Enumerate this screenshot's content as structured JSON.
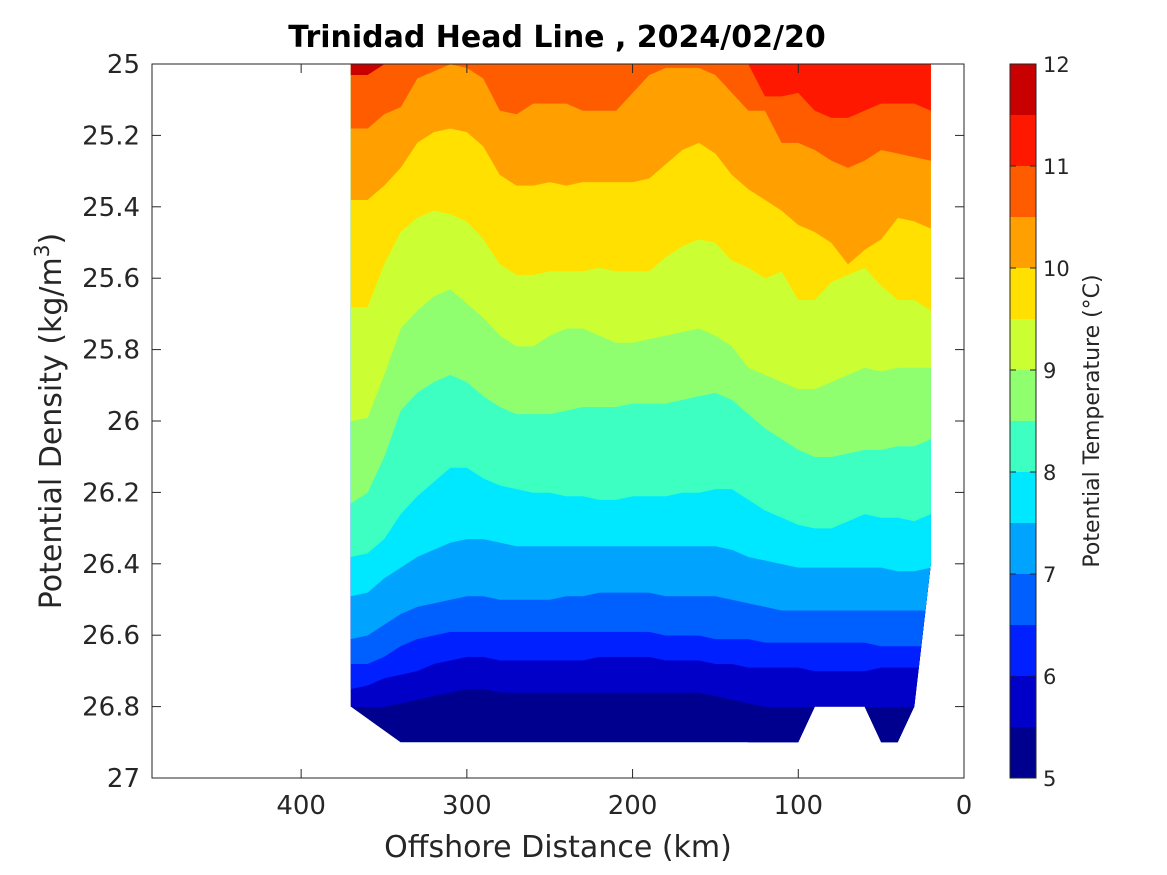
{
  "chart_data": {
    "type": "contour",
    "title": "Trinidad Head Line , 2024/02/20",
    "xlabel": "Offshore Distance (km)",
    "ylabel": "Potential Density (kg/m",
    "ylabel_sup": "3",
    "ylabel_close": ")",
    "colorbar_label": "Potential Temperature (°C)",
    "xlim": [
      490,
      0
    ],
    "ylim": [
      25,
      27
    ],
    "y_reversed": true,
    "x_ticks": [
      400,
      300,
      200,
      100,
      0
    ],
    "y_ticks": [
      "25",
      "25.2",
      "25.4",
      "25.6",
      "25.8",
      "26",
      "26.2",
      "26.4",
      "26.6",
      "26.8",
      "27"
    ],
    "colorbar_ticks": [
      5,
      6,
      7,
      8,
      9,
      10,
      11,
      12
    ],
    "colorbar_range": [
      5,
      12
    ],
    "levels": [
      5,
      5.5,
      6,
      6.5,
      7,
      7.5,
      8,
      8.5,
      9,
      9.5,
      10,
      10.5,
      11,
      11.5,
      12
    ],
    "level_colors": [
      "#00008f",
      "#0000c8",
      "#0020ff",
      "#0060ff",
      "#00a4ff",
      "#00e8ff",
      "#3dffc2",
      "#8fff70",
      "#ccff33",
      "#ffe000",
      "#ffa000",
      "#ff5c00",
      "#ff1800",
      "#c80000"
    ],
    "data_extent": {
      "x": [
        20,
        370
      ],
      "upper_x": [
        370,
        340,
        330,
        320,
        310,
        300,
        290,
        280,
        270,
        260,
        250,
        240,
        230,
        220,
        210,
        200,
        190,
        180,
        170,
        160,
        150,
        140,
        130,
        120,
        110,
        100,
        90,
        80,
        70,
        60,
        50,
        40,
        30,
        20
      ],
      "bottom_density": [
        26.8,
        26.9,
        26.9,
        26.9,
        26.9,
        26.9,
        26.9,
        26.9,
        26.9,
        26.9,
        26.9,
        26.9,
        26.9,
        26.9,
        26.9,
        26.9,
        26.9,
        26.9,
        26.9,
        26.9,
        26.9,
        26.9,
        26.9,
        26.9,
        26.9,
        26.9,
        26.8,
        26.8,
        26.8,
        26.8,
        26.9,
        26.9,
        26.8,
        26.4
      ]
    },
    "isotherms": [
      {
        "level": 11.5,
        "x": [
          370,
          360,
          350,
          340,
          330,
          320,
          310,
          300,
          290,
          280,
          270,
          260,
          250,
          240,
          230,
          220,
          210,
          200,
          190,
          180,
          170,
          160,
          150,
          140,
          130,
          120,
          110,
          100,
          90,
          80,
          70,
          60,
          50,
          40,
          30,
          20
        ],
        "density": [
          25.03,
          25.03,
          25.0,
          25.0,
          25.0,
          25.0,
          25.0,
          25.0,
          25.0,
          25.0,
          25.0,
          25.0,
          25.0,
          25.0,
          25.0,
          25.0,
          25.0,
          25.0,
          25.0,
          25.0,
          25.0,
          25.0,
          25.0,
          25.0,
          25.0,
          25.0,
          25.0,
          25.0,
          25.0,
          25.0,
          25.0,
          25.0,
          25.0,
          25.0,
          25.0,
          25.0
        ]
      },
      {
        "level": 11,
        "x": [
          370,
          360,
          350,
          340,
          330,
          320,
          310,
          300,
          290,
          280,
          270,
          260,
          250,
          240,
          230,
          220,
          210,
          200,
          190,
          180,
          170,
          160,
          150,
          140,
          130,
          120,
          110,
          100,
          90,
          80,
          70,
          60,
          50,
          40,
          30,
          20
        ],
        "density": [
          25.03,
          25.03,
          25.0,
          25.0,
          25.0,
          25.0,
          25.0,
          25.0,
          25.0,
          25.0,
          25.0,
          25.0,
          25.0,
          25.0,
          25.0,
          25.0,
          25.0,
          25.0,
          25.0,
          25.0,
          25.0,
          25.0,
          25.0,
          25.0,
          25.0,
          25.09,
          25.09,
          25.08,
          25.13,
          25.15,
          25.15,
          25.13,
          25.11,
          25.11,
          25.11,
          25.13
        ]
      },
      {
        "level": 10.5,
        "x": [
          370,
          360,
          350,
          340,
          330,
          320,
          310,
          300,
          290,
          280,
          270,
          260,
          250,
          240,
          230,
          220,
          210,
          200,
          190,
          180,
          170,
          160,
          150,
          140,
          130,
          120,
          110,
          100,
          90,
          80,
          70,
          60,
          50,
          40,
          30,
          20
        ],
        "density": [
          25.18,
          25.18,
          25.14,
          25.12,
          25.04,
          25.02,
          25.0,
          25.01,
          25.04,
          25.13,
          25.14,
          25.11,
          25.11,
          25.11,
          25.13,
          25.13,
          25.13,
          25.08,
          25.03,
          25.01,
          25.01,
          25.01,
          25.03,
          25.08,
          25.13,
          25.13,
          25.22,
          25.22,
          25.24,
          25.27,
          25.29,
          25.27,
          25.24,
          25.25,
          25.26,
          25.27
        ]
      },
      {
        "level": 10,
        "x": [
          370,
          360,
          350,
          340,
          330,
          320,
          310,
          300,
          290,
          280,
          270,
          260,
          250,
          240,
          230,
          220,
          210,
          200,
          190,
          180,
          170,
          160,
          150,
          140,
          130,
          120,
          110,
          100,
          90,
          80,
          70,
          60,
          50,
          40,
          30,
          20
        ],
        "density": [
          25.38,
          25.38,
          25.34,
          25.29,
          25.22,
          25.19,
          25.18,
          25.19,
          25.23,
          25.31,
          25.34,
          25.34,
          25.33,
          25.34,
          25.33,
          25.33,
          25.33,
          25.33,
          25.32,
          25.28,
          25.24,
          25.22,
          25.25,
          25.31,
          25.35,
          25.38,
          25.41,
          25.45,
          25.47,
          25.5,
          25.56,
          25.52,
          25.49,
          25.43,
          25.44,
          25.46
        ]
      },
      {
        "level": 9.5,
        "x": [
          370,
          360,
          350,
          340,
          330,
          320,
          310,
          300,
          290,
          280,
          270,
          260,
          250,
          240,
          230,
          220,
          210,
          200,
          190,
          180,
          170,
          160,
          150,
          140,
          130,
          120,
          110,
          100,
          90,
          80,
          70,
          60,
          50,
          40,
          30,
          20
        ],
        "density": [
          25.68,
          25.68,
          25.56,
          25.47,
          25.43,
          25.41,
          25.42,
          25.44,
          25.49,
          25.56,
          25.59,
          25.59,
          25.58,
          25.58,
          25.58,
          25.57,
          25.58,
          25.58,
          25.58,
          25.54,
          25.51,
          25.49,
          25.5,
          25.55,
          25.57,
          25.6,
          25.58,
          25.66,
          25.66,
          25.61,
          25.59,
          25.57,
          25.62,
          25.66,
          25.66,
          25.69
        ]
      },
      {
        "level": 9,
        "x": [
          370,
          360,
          350,
          340,
          330,
          320,
          310,
          300,
          290,
          280,
          270,
          260,
          250,
          240,
          230,
          220,
          210,
          200,
          190,
          180,
          170,
          160,
          150,
          140,
          130,
          120,
          110,
          100,
          90,
          80,
          70,
          60,
          50,
          40,
          30,
          20
        ],
        "density": [
          26.0,
          25.99,
          25.87,
          25.74,
          25.69,
          25.65,
          25.63,
          25.67,
          25.71,
          25.76,
          25.79,
          25.79,
          25.76,
          25.74,
          25.74,
          25.76,
          25.78,
          25.78,
          25.77,
          25.76,
          25.75,
          25.74,
          25.76,
          25.79,
          25.85,
          25.87,
          25.89,
          25.91,
          25.91,
          25.89,
          25.87,
          25.85,
          25.86,
          25.85,
          25.85,
          25.85
        ]
      },
      {
        "level": 8.5,
        "x": [
          370,
          360,
          350,
          340,
          330,
          320,
          310,
          300,
          290,
          280,
          270,
          260,
          250,
          240,
          230,
          220,
          210,
          200,
          190,
          180,
          170,
          160,
          150,
          140,
          130,
          120,
          110,
          100,
          90,
          80,
          70,
          60,
          50,
          40,
          30,
          20
        ],
        "density": [
          26.23,
          26.2,
          26.1,
          25.97,
          25.92,
          25.89,
          25.87,
          25.89,
          25.93,
          25.96,
          25.98,
          25.98,
          25.98,
          25.97,
          25.96,
          25.96,
          25.96,
          25.95,
          25.95,
          25.95,
          25.94,
          25.93,
          25.92,
          25.94,
          25.98,
          26.02,
          26.05,
          26.08,
          26.1,
          26.1,
          26.09,
          26.08,
          26.08,
          26.07,
          26.07,
          26.05
        ]
      },
      {
        "level": 8,
        "x": [
          370,
          360,
          350,
          340,
          330,
          320,
          310,
          300,
          290,
          280,
          270,
          260,
          250,
          240,
          230,
          220,
          210,
          200,
          190,
          180,
          170,
          160,
          150,
          140,
          130,
          120,
          110,
          100,
          90,
          80,
          70,
          60,
          50,
          40,
          30,
          20
        ],
        "density": [
          26.38,
          26.37,
          26.33,
          26.26,
          26.21,
          26.17,
          26.13,
          26.13,
          26.16,
          26.18,
          26.19,
          26.2,
          26.2,
          26.21,
          26.21,
          26.22,
          26.22,
          26.21,
          26.21,
          26.21,
          26.2,
          26.2,
          26.19,
          26.19,
          26.22,
          26.25,
          26.27,
          26.29,
          26.3,
          26.3,
          26.28,
          26.26,
          26.27,
          26.27,
          26.28,
          26.26
        ]
      },
      {
        "level": 7.5,
        "x": [
          370,
          360,
          350,
          340,
          330,
          320,
          310,
          300,
          290,
          280,
          270,
          260,
          250,
          240,
          230,
          220,
          210,
          200,
          190,
          180,
          170,
          160,
          150,
          140,
          130,
          120,
          110,
          100,
          90,
          80,
          70,
          60,
          50,
          40,
          30,
          20
        ],
        "density": [
          26.49,
          26.48,
          26.44,
          26.41,
          26.38,
          26.36,
          26.34,
          26.33,
          26.33,
          26.34,
          26.35,
          26.35,
          26.35,
          26.35,
          26.35,
          26.35,
          26.35,
          26.35,
          26.35,
          26.35,
          26.35,
          26.35,
          26.35,
          26.36,
          26.38,
          26.39,
          26.4,
          26.41,
          26.41,
          26.41,
          26.41,
          26.41,
          26.41,
          26.42,
          26.42,
          26.41
        ]
      },
      {
        "level": 7,
        "x": [
          370,
          360,
          350,
          340,
          330,
          320,
          310,
          300,
          290,
          280,
          270,
          260,
          250,
          240,
          230,
          220,
          210,
          200,
          190,
          180,
          170,
          160,
          150,
          140,
          130,
          120,
          110,
          100,
          90,
          80,
          70,
          60,
          50,
          40,
          30,
          20
        ],
        "density": [
          26.61,
          26.6,
          26.57,
          26.54,
          26.52,
          26.51,
          26.5,
          26.49,
          26.49,
          26.5,
          26.5,
          26.5,
          26.5,
          26.49,
          26.49,
          26.48,
          26.48,
          26.48,
          26.48,
          26.49,
          26.49,
          26.49,
          26.49,
          26.5,
          26.51,
          26.52,
          26.53,
          26.53,
          26.53,
          26.53,
          26.53,
          26.53,
          26.53,
          26.53,
          26.53,
          26.53
        ]
      },
      {
        "level": 6.5,
        "x": [
          370,
          360,
          350,
          340,
          330,
          320,
          310,
          300,
          290,
          280,
          270,
          260,
          250,
          240,
          230,
          220,
          210,
          200,
          190,
          180,
          170,
          160,
          150,
          140,
          130,
          120,
          110,
          100,
          90,
          80,
          70,
          60,
          50,
          40,
          30,
          20
        ],
        "density": [
          26.68,
          26.68,
          26.66,
          26.63,
          26.61,
          26.6,
          26.59,
          26.59,
          26.59,
          26.59,
          26.59,
          26.59,
          26.59,
          26.59,
          26.59,
          26.59,
          26.59,
          26.59,
          26.59,
          26.6,
          26.6,
          26.6,
          26.61,
          26.61,
          26.61,
          26.62,
          26.62,
          26.62,
          26.62,
          26.62,
          26.62,
          26.62,
          26.63,
          26.63,
          26.63,
          26.63
        ]
      },
      {
        "level": 6,
        "x": [
          370,
          360,
          350,
          340,
          330,
          320,
          310,
          300,
          290,
          280,
          270,
          260,
          250,
          240,
          230,
          220,
          210,
          200,
          190,
          180,
          170,
          160,
          150,
          140,
          130,
          120,
          110,
          100,
          90,
          80,
          70,
          60,
          50,
          40,
          30,
          20
        ],
        "density": [
          26.75,
          26.74,
          26.72,
          26.71,
          26.7,
          26.68,
          26.67,
          26.66,
          26.66,
          26.67,
          26.67,
          26.67,
          26.67,
          26.67,
          26.67,
          26.66,
          26.66,
          26.66,
          26.66,
          26.67,
          26.67,
          26.67,
          26.68,
          26.68,
          26.69,
          26.69,
          26.69,
          26.69,
          26.7,
          26.7,
          26.7,
          26.7,
          26.69,
          26.69,
          26.69,
          26.69
        ]
      },
      {
        "level": 5.5,
        "x": [
          370,
          360,
          350,
          340,
          330,
          320,
          310,
          300,
          290,
          280,
          270,
          260,
          250,
          240,
          230,
          220,
          210,
          200,
          190,
          180,
          170,
          160,
          150,
          140,
          130,
          120,
          110,
          100,
          90,
          80,
          70,
          60,
          50,
          40,
          30,
          20
        ],
        "density": [
          26.8,
          26.8,
          26.8,
          26.79,
          26.78,
          26.77,
          26.76,
          26.75,
          26.75,
          26.76,
          26.76,
          26.76,
          26.76,
          26.76,
          26.76,
          26.76,
          26.76,
          26.76,
          26.76,
          26.76,
          26.76,
          26.76,
          26.77,
          26.78,
          26.79,
          26.8,
          26.8,
          26.8,
          26.8,
          26.8,
          26.8,
          26.8,
          26.8,
          26.8,
          26.8,
          26.8
        ]
      },
      {
        "level": 5,
        "x": [
          370,
          360,
          350,
          340,
          330,
          320,
          310,
          300,
          290,
          280,
          270,
          260,
          250,
          240,
          230,
          220,
          210,
          200,
          190,
          180,
          170,
          160,
          150,
          140,
          130,
          120,
          110,
          100,
          90,
          80,
          70,
          60,
          50,
          40,
          30,
          20
        ],
        "density": [
          26.8,
          26.8,
          26.8,
          26.86,
          26.86,
          26.86,
          26.86,
          26.86,
          26.86,
          26.86,
          26.86,
          26.86,
          26.86,
          26.86,
          26.86,
          26.86,
          26.86,
          26.86,
          26.86,
          26.86,
          26.85,
          26.84,
          26.85,
          26.87,
          26.9,
          26.9,
          26.9,
          26.9,
          26.8,
          26.8,
          26.8,
          26.8,
          26.9,
          26.9,
          26.8,
          26.8
        ]
      }
    ]
  }
}
